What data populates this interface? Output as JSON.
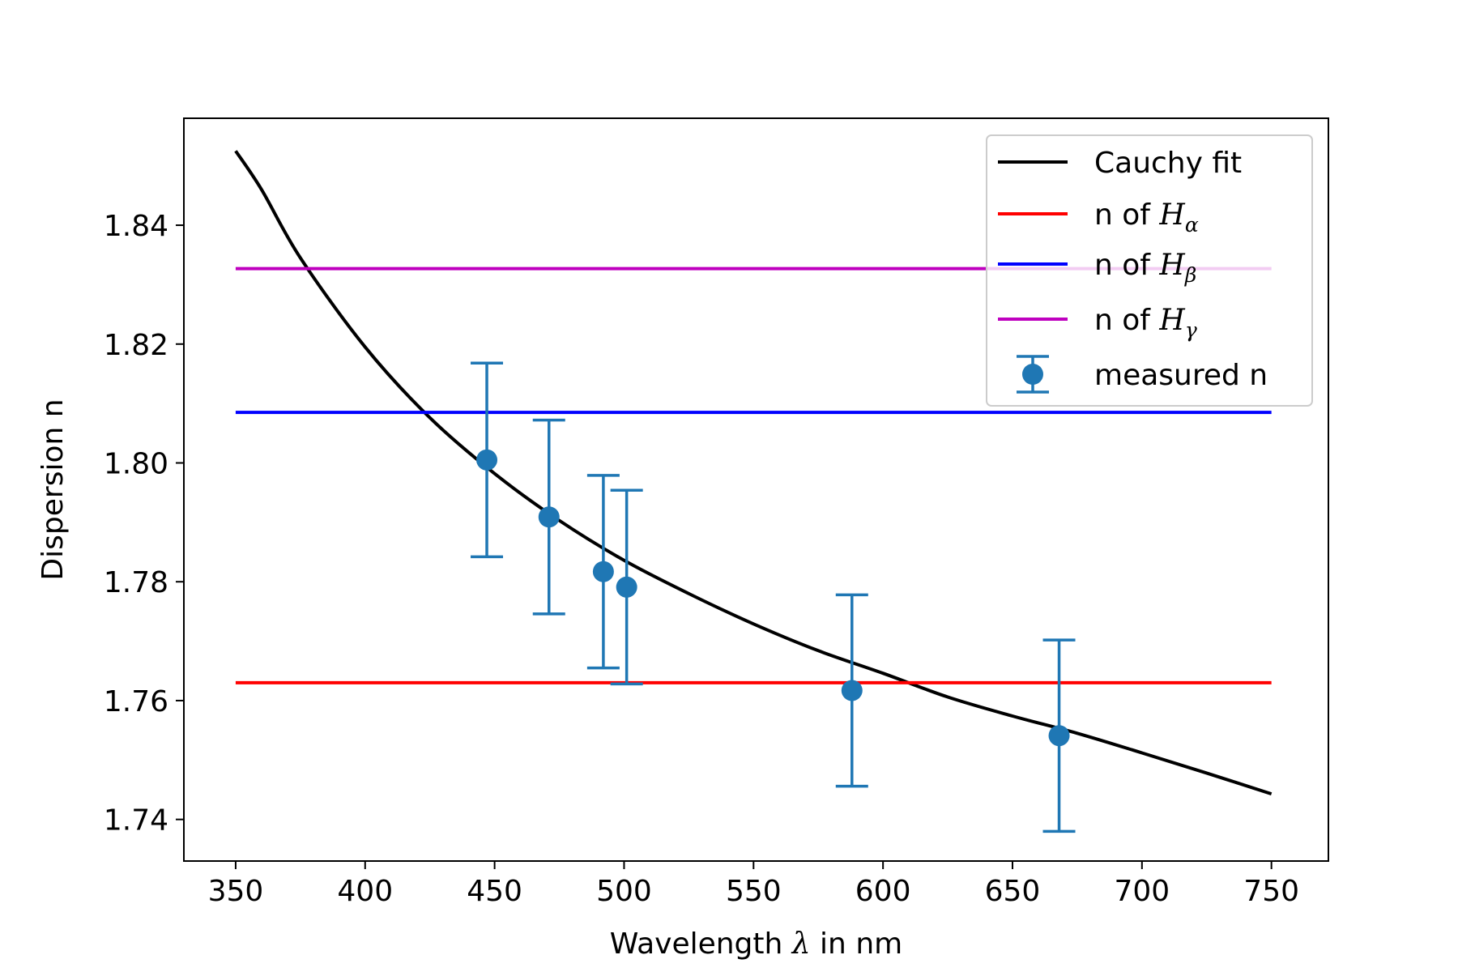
{
  "chart_data": {
    "type": "line",
    "title": "",
    "xlabel": {
      "prefix": "Wavelength ",
      "symbol": "λ",
      "suffix": " in nm"
    },
    "ylabel": "Dispersion n",
    "xlim": [
      330,
      772
    ],
    "ylim": [
      1.733,
      1.858
    ],
    "xticks": [
      350,
      400,
      450,
      500,
      550,
      600,
      650,
      700,
      750
    ],
    "xtick_labels": [
      "350",
      "400",
      "450",
      "500",
      "550",
      "600",
      "650",
      "700",
      "750"
    ],
    "yticks": [
      1.74,
      1.76,
      1.78,
      1.8,
      1.82,
      1.84
    ],
    "ytick_labels": [
      "1.74",
      "1.76",
      "1.78",
      "1.80",
      "1.82",
      "1.84"
    ],
    "grid": false,
    "legend_position": "top-right",
    "series": [
      {
        "name": "Cauchy fit",
        "kind": "line",
        "color": "#000000",
        "x": [
          350,
          360,
          375,
          400,
          425,
          450,
          475,
          500,
          525,
          550,
          575,
          600,
          625,
          650,
          675,
          700,
          725,
          750
        ],
        "y": [
          1.8525,
          1.846,
          1.8345,
          1.8195,
          1.8076,
          1.7982,
          1.7903,
          1.7836,
          1.778,
          1.7729,
          1.7684,
          1.7646,
          1.7606,
          1.7574,
          1.7545,
          1.7512,
          1.7478,
          1.7443
        ]
      },
      {
        "name_prefix": "n of ",
        "name_symbol": "H",
        "name_sub": "α",
        "kind": "hline",
        "color": "#ff0000",
        "y": 1.763,
        "xrange": [
          350,
          750
        ]
      },
      {
        "name_prefix": "n of ",
        "name_symbol": "H",
        "name_sub": "β",
        "kind": "hline",
        "color": "#0000ff",
        "y": 1.8085,
        "xrange": [
          350,
          750
        ]
      },
      {
        "name_prefix": "n of ",
        "name_symbol": "H",
        "name_sub": "γ",
        "kind": "hline",
        "color": "#bf00bf",
        "y": 1.8327,
        "xrange": [
          350,
          750
        ]
      },
      {
        "name": "measured n",
        "kind": "errorbar",
        "color": "#1f77b4",
        "points": [
          {
            "x": 447,
            "y": 1.8005,
            "err": 0.0163
          },
          {
            "x": 471,
            "y": 1.7909,
            "err": 0.0163
          },
          {
            "x": 492,
            "y": 1.7817,
            "err": 0.0162
          },
          {
            "x": 501,
            "y": 1.7791,
            "err": 0.0163
          },
          {
            "x": 588,
            "y": 1.7617,
            "err": 0.0161
          },
          {
            "x": 668,
            "y": 1.7541,
            "err": 0.0161
          }
        ]
      }
    ]
  }
}
